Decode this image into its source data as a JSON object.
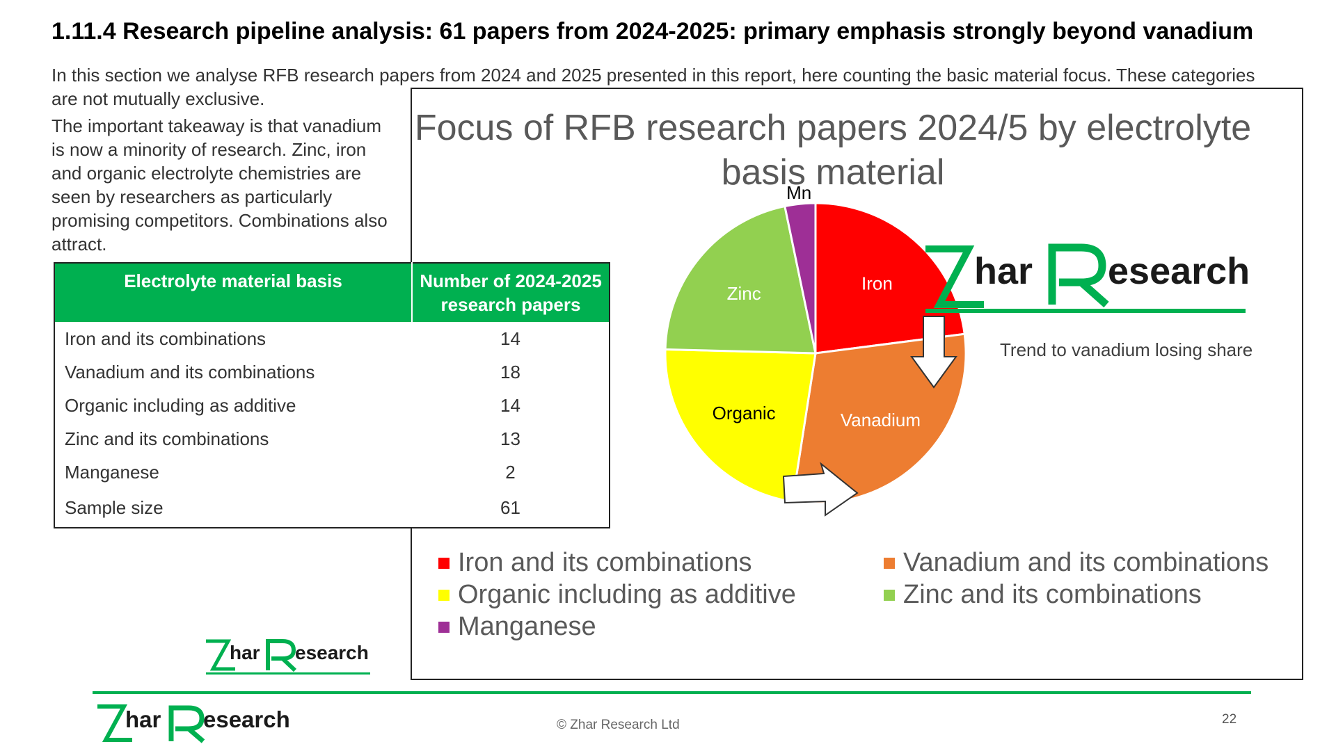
{
  "slide": {
    "title": "1.11.4 Research pipeline analysis: 61 papers from 2024-2025: primary emphasis strongly beyond vanadium",
    "intro": "In this section we analyse RFB research papers from 2024 and 2025 presented in this report, here counting the basic material focus. These categories are not mutually exclusive.",
    "takeaway": "The important takeaway is that vanadium  is now a minority of research. Zinc, iron and organic electrolyte chemistries are seen by researchers as particularly promising competitors. Combinations also attract."
  },
  "table": {
    "headers": [
      "Electrolyte material basis",
      "Number of 2024-2025 research papers"
    ],
    "rows": [
      {
        "label": "Iron and its combinations",
        "value": "14"
      },
      {
        "label": "Vanadium and its combinations",
        "value": "18"
      },
      {
        "label": "Organic including as additive",
        "value": "14"
      },
      {
        "label": "Zinc and its combinations",
        "value": "13"
      },
      {
        "label": "Manganese",
        "value": "2"
      },
      {
        "label": "Sample size",
        "value": "61"
      }
    ]
  },
  "chart_data": {
    "type": "pie",
    "title": "Focus of RFB research papers 2024/5 by electrolyte basis material",
    "slices": [
      {
        "label": "Iron",
        "legend": "Iron and its combinations",
        "value": 14,
        "color": "#ff0000",
        "label_color": "#ffffff"
      },
      {
        "label": "Vanadium",
        "legend": "Vanadium and its combinations",
        "value": 18,
        "color": "#ed7d31",
        "label_color": "#ffffff"
      },
      {
        "label": "Organic",
        "legend": "Organic including as additive",
        "value": 14,
        "color": "#ffff00",
        "label_color": "#000000"
      },
      {
        "label": "Zinc",
        "legend": "Zinc and its combinations",
        "value": 13,
        "color": "#92d050",
        "label_color": "#ffffff"
      },
      {
        "label": "Mn",
        "legend": "Manganese",
        "value": 2,
        "color": "#9e2f96",
        "label_color": "#000000"
      }
    ],
    "annotation": "Trend to vanadium losing share",
    "legend_position": "bottom"
  },
  "logo": {
    "z": "Z",
    "har": "har",
    "r": "R",
    "esearch": "esearch",
    "color": "#00b050"
  },
  "footer": {
    "copyright": "© Zhar Research Ltd",
    "page": "22"
  }
}
